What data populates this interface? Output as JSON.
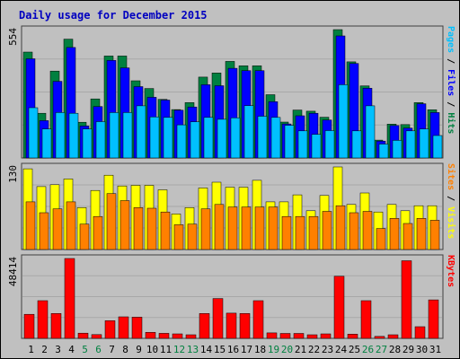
{
  "title": "Daily usage for December 2015",
  "colors": {
    "background": "#c0c0c0",
    "title": "#0000c0",
    "hits": "#008040",
    "files": "#0000ff",
    "pages": "#00c0ff",
    "visits": "#ffff00",
    "sites": "#ff8000",
    "kbytes": "#ff0000",
    "weekend_label": "#008040",
    "weekday_label": "#000000",
    "separator": "#202020"
  },
  "chart_data": {
    "type": "bar",
    "categories": [
      "1",
      "2",
      "3",
      "4",
      "5",
      "6",
      "7",
      "8",
      "9",
      "10",
      "11",
      "12",
      "13",
      "14",
      "15",
      "16",
      "17",
      "18",
      "19",
      "20",
      "21",
      "22",
      "23",
      "24",
      "25",
      "26",
      "27",
      "28",
      "29",
      "30",
      "31"
    ],
    "weekend_days": [
      "5",
      "6",
      "12",
      "13",
      "19",
      "20",
      "26",
      "27"
    ],
    "panels": [
      {
        "id": "hits_files_pages",
        "max_label": "554",
        "ylim": [
          0,
          554
        ],
        "right_labels": [
          {
            "text": "Pages",
            "color": "#00c0ff"
          },
          {
            "text": " / ",
            "color": "#000000"
          },
          {
            "text": "Files",
            "color": "#0000ff"
          },
          {
            "text": " / ",
            "color": "#000000"
          },
          {
            "text": "Hits",
            "color": "#008040"
          }
        ],
        "series": [
          {
            "name": "Hits",
            "color": "#008040",
            "values": [
              457,
              193,
              375,
              513,
              154,
              255,
              440,
              440,
              333,
              300,
              253,
              209,
              239,
              349,
              367,
              417,
              398,
              398,
              273,
              155,
              207,
              202,
              176,
              554,
              415,
              311,
              77,
              146,
              144,
              239,
              208
            ]
          },
          {
            "name": "Files",
            "color": "#0000ff",
            "values": [
              428,
              161,
              331,
              477,
              138,
              222,
              421,
              389,
              308,
              262,
              250,
              206,
              220,
              316,
              312,
              387,
              377,
              377,
              243,
              147,
              182,
              193,
              164,
              527,
              408,
              301,
              73,
              140,
              129,
              234,
              196
            ]
          },
          {
            "name": "Pages",
            "color": "#00c0ff",
            "values": [
              217,
              125,
              196,
              193,
              125,
              157,
              196,
              196,
              225,
              177,
              175,
              143,
              156,
              175,
              167,
              173,
              226,
              180,
              175,
              141,
              117,
              102,
              118,
              316,
              117,
              225,
              60,
              76,
              117,
              125,
              97
            ]
          }
        ]
      },
      {
        "id": "visits_sites",
        "max_label": "130",
        "ylim": [
          0,
          130
        ],
        "right_labels": [
          {
            "text": "Sites",
            "color": "#ff8000"
          },
          {
            "text": " / ",
            "color": "#000000"
          },
          {
            "text": "Visits",
            "color": "#ffff00"
          }
        ],
        "series": [
          {
            "name": "Visits",
            "color": "#ffff00",
            "values": [
              127,
              99,
              102,
              111,
              66,
              93,
              117,
              100,
              101,
              101,
              94,
              56,
              66,
              97,
              106,
              98,
              98,
              109,
              75,
              75,
              86,
              61,
              85,
              130,
              71,
              89,
              59,
              71,
              61,
              69,
              69
            ]
          },
          {
            "name": "Sites",
            "color": "#ff8000",
            "values": [
              75,
              58,
              64,
              75,
              40,
              52,
              88,
              77,
              66,
              65,
              59,
              39,
              40,
              64,
              71,
              67,
              67,
              67,
              67,
              52,
              52,
              52,
              60,
              69,
              58,
              60,
              33,
              49,
              41,
              49,
              46
            ]
          }
        ]
      },
      {
        "id": "kbytes",
        "max_label": "48414",
        "ylim": [
          0,
          48414
        ],
        "right_labels": [
          {
            "text": "KBytes",
            "color": "#ff0000"
          }
        ],
        "series": [
          {
            "name": "KBytes",
            "color": "#ff0000",
            "values": [
              14583,
              22844,
              15059,
              48414,
              3178,
              2304,
              10700,
              13082,
              12813,
              3662,
              3051,
              2710,
              2202,
              15059,
              24126,
              15262,
              15059,
              22844,
              3320,
              2988,
              2988,
              2202,
              2710,
              37620,
              2540,
              22844,
              1186,
              2202,
              47058,
              7047,
              23353
            ]
          }
        ]
      }
    ]
  }
}
